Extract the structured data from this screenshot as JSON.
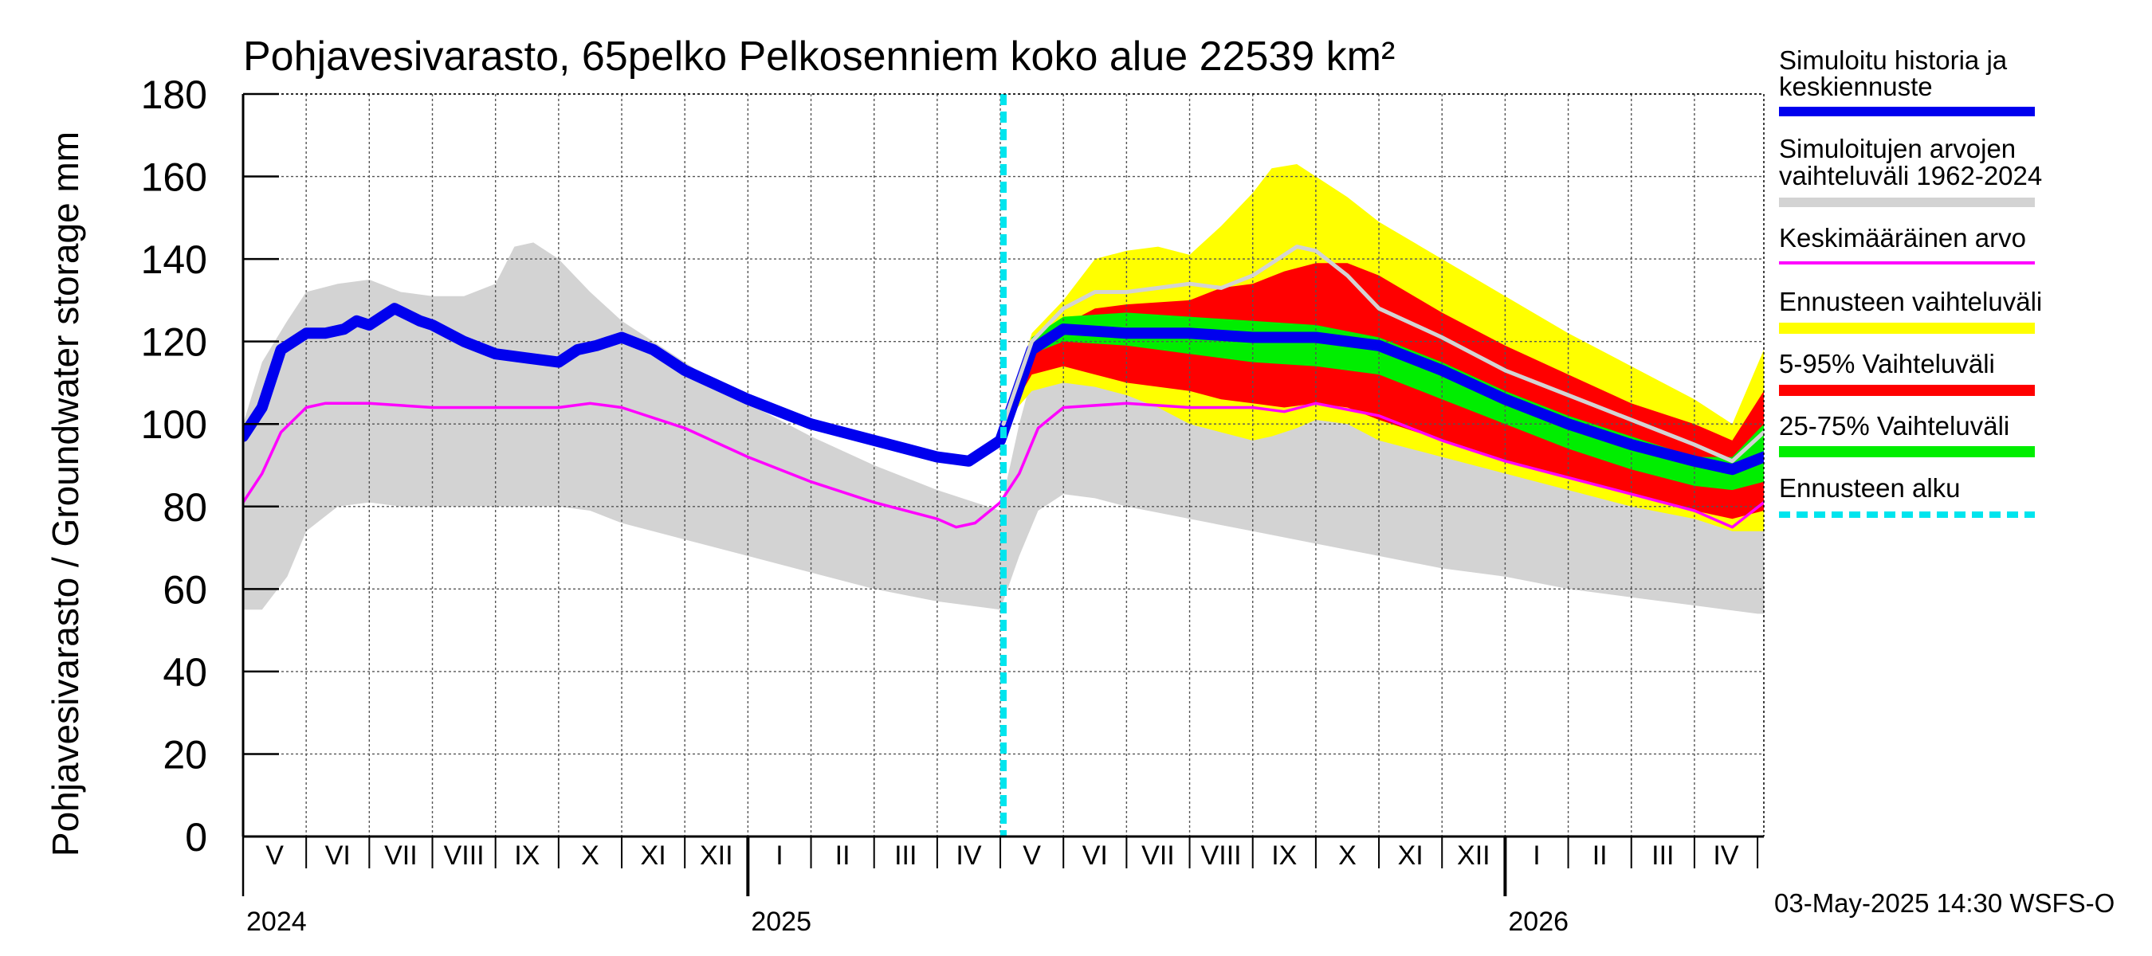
{
  "chart_data": {
    "type": "area",
    "title": "Pohjavesivarasto, 65pelko Pelkosenniem koko alue 22539 km²",
    "ylabel": "Pohjavesivarasto / Groundwater storage   mm",
    "ylim": [
      0,
      180
    ],
    "yticks": [
      0,
      20,
      40,
      60,
      80,
      100,
      120,
      140,
      160,
      180
    ],
    "x_unit": "months since 2024-05-01",
    "xlim": [
      0,
      24.1
    ],
    "forecast_start": 12.05,
    "months": [
      {
        "label": "V",
        "x": 0.5
      },
      {
        "label": "VI",
        "x": 1.5
      },
      {
        "label": "VII",
        "x": 2.5
      },
      {
        "label": "VIII",
        "x": 3.5
      },
      {
        "label": "IX",
        "x": 4.5
      },
      {
        "label": "X",
        "x": 5.5
      },
      {
        "label": "XI",
        "x": 6.5
      },
      {
        "label": "XII",
        "x": 7.5
      },
      {
        "label": "I",
        "x": 8.5
      },
      {
        "label": "II",
        "x": 9.5
      },
      {
        "label": "III",
        "x": 10.5
      },
      {
        "label": "IV",
        "x": 11.5
      },
      {
        "label": "V",
        "x": 12.5
      },
      {
        "label": "VI",
        "x": 13.5
      },
      {
        "label": "VII",
        "x": 14.5
      },
      {
        "label": "VIII",
        "x": 15.5
      },
      {
        "label": "IX",
        "x": 16.5
      },
      {
        "label": "X",
        "x": 17.5
      },
      {
        "label": "XI",
        "x": 18.5
      },
      {
        "label": "XII",
        "x": 19.5
      },
      {
        "label": "I",
        "x": 20.5
      },
      {
        "label": "II",
        "x": 21.5
      },
      {
        "label": "III",
        "x": 22.5
      },
      {
        "label": "IV",
        "x": 23.5
      }
    ],
    "years": [
      {
        "label": "2024",
        "x": 0
      },
      {
        "label": "2025",
        "x": 8
      },
      {
        "label": "2026",
        "x": 20
      }
    ],
    "series": [
      {
        "name": "Simuloitujen arvojen vaihteluväli 1962-2024",
        "role": "range",
        "color": "#d3d3d3",
        "x": [
          0,
          0.3,
          0.7,
          1,
          1.5,
          2,
          2.5,
          3,
          3.5,
          4,
          4.3,
          4.6,
          5,
          5.5,
          6,
          7,
          8,
          9,
          10,
          11,
          12,
          12.3,
          12.6,
          13,
          13.5,
          14,
          15,
          16,
          17,
          18,
          19,
          20,
          21,
          22,
          23,
          24,
          24.1
        ],
        "upper": [
          100,
          115,
          125,
          132,
          134,
          135,
          132,
          131,
          131,
          134,
          143,
          144,
          140,
          132,
          125,
          115,
          105,
          97,
          90,
          84,
          79,
          100,
          117,
          124,
          131,
          134,
          133,
          131,
          125,
          117,
          110,
          104,
          98,
          93,
          88,
          84,
          83
        ],
        "lower": [
          55,
          55,
          63,
          74,
          80,
          81,
          80,
          80,
          80,
          80,
          80,
          80,
          80,
          79,
          76,
          72,
          68,
          64,
          60,
          57,
          55,
          68,
          79,
          83,
          82,
          80,
          77,
          74,
          71,
          68,
          65,
          63,
          60,
          58,
          56,
          54,
          54
        ]
      },
      {
        "name": "Ennusteen vaihteluväli",
        "role": "band",
        "color": "#ffff00",
        "x": [
          12.05,
          12.5,
          13,
          13.5,
          14,
          14.5,
          15,
          15.5,
          16,
          16.3,
          16.7,
          17,
          17.5,
          18,
          19,
          20,
          21,
          22,
          23,
          23.6,
          24.1
        ],
        "upper": [
          100,
          122,
          130,
          140,
          142,
          143,
          141,
          148,
          156,
          162,
          163,
          160,
          155,
          149,
          140,
          131,
          122,
          114,
          106,
          100,
          118
        ],
        "lower": [
          100,
          108,
          110,
          109,
          107,
          104,
          100,
          98,
          96,
          97,
          99,
          101,
          100,
          96,
          92,
          88,
          84,
          80,
          77,
          74,
          74
        ]
      },
      {
        "name": "5-95% Vaihteluväli",
        "role": "band",
        "color": "#ff0000",
        "x": [
          12.05,
          12.5,
          13,
          13.5,
          14,
          15,
          15.5,
          16,
          16.5,
          17,
          17.5,
          18,
          19,
          20,
          21,
          22,
          23,
          23.6,
          24.1
        ],
        "upper": [
          100,
          118,
          124,
          128,
          129,
          130,
          133,
          134,
          137,
          139,
          139,
          136,
          127,
          119,
          112,
          105,
          100,
          96,
          108
        ],
        "lower": [
          100,
          112,
          114,
          112,
          110,
          108,
          106,
          105,
          104,
          105,
          104,
          101,
          96,
          91,
          87,
          83,
          79,
          77,
          79
        ]
      },
      {
        "name": "25-75% Vaihteluväli",
        "role": "band",
        "color": "#00ee00",
        "x": [
          12.05,
          12.5,
          13,
          14,
          15,
          16,
          17,
          18,
          19,
          20,
          21,
          22,
          23,
          23.6,
          24.1
        ],
        "upper": [
          100,
          121,
          126,
          127,
          126,
          125,
          124,
          121,
          115,
          108,
          102,
          97,
          92,
          92,
          100
        ],
        "lower": [
          100,
          117,
          120,
          119,
          117,
          115,
          114,
          112,
          106,
          100,
          94,
          89,
          85,
          84,
          86
        ]
      },
      {
        "name": "Keskimääräinen arvo",
        "role": "line",
        "color": "#ff00ff",
        "x": [
          0,
          0.3,
          0.6,
          1,
          1.3,
          2,
          3,
          4,
          5,
          5.5,
          6,
          7,
          8,
          9,
          10,
          11,
          11.3,
          11.6,
          12,
          12.3,
          12.6,
          13,
          14,
          15,
          16,
          16.5,
          17,
          18,
          19,
          20,
          21,
          22,
          23,
          23.6,
          24.1
        ],
        "y": [
          81,
          88,
          98,
          104,
          105,
          105,
          104,
          104,
          104,
          105,
          104,
          99,
          92,
          86,
          81,
          77,
          75,
          76,
          81,
          88,
          99,
          104,
          105,
          104,
          104,
          103,
          105,
          102,
          96,
          91,
          87,
          83,
          79,
          75,
          81
        ]
      },
      {
        "name": "Simuloitu historia ja keskiennuste",
        "role": "line",
        "color": "#0000ee",
        "x": [
          0,
          0.3,
          0.6,
          1,
          1.3,
          1.6,
          1.8,
          2,
          2.4,
          2.8,
          3,
          3.5,
          4,
          4.5,
          5,
          5.3,
          5.6,
          6,
          6.5,
          7,
          8,
          9,
          10,
          11,
          11.5,
          12,
          12.5,
          13,
          14,
          15,
          16,
          17,
          18,
          19,
          20,
          21,
          22,
          23,
          23.6,
          24.1
        ],
        "y": [
          97,
          104,
          118,
          122,
          122,
          123,
          125,
          124,
          128,
          125,
          124,
          120,
          117,
          116,
          115,
          118,
          119,
          121,
          118,
          113,
          106,
          100,
          96,
          92,
          91,
          96,
          118,
          123,
          122,
          122,
          121,
          121,
          119,
          113,
          106,
          100,
          95,
          91,
          89,
          92
        ]
      },
      {
        "name": "Simuloitu median-viiva",
        "role": "aux-line",
        "color": "#d3d3d3",
        "x": [
          12.05,
          12.5,
          13,
          13.5,
          14,
          14.5,
          15,
          15.5,
          16,
          16.3,
          16.7,
          17,
          17.5,
          18,
          19,
          20,
          21,
          22,
          23,
          23.6,
          24.1
        ],
        "y": [
          100,
          120,
          128,
          132,
          132,
          133,
          134,
          133,
          136,
          139,
          143,
          142,
          136,
          128,
          121,
          113,
          107,
          101,
          95,
          91,
          98
        ]
      }
    ]
  },
  "legend": [
    {
      "label": "Simuloitu historia ja keskiennuste",
      "color": "#0000ee",
      "style": "line"
    },
    {
      "label": "Simuloitujen arvojen vaihteluväli 1962-2024",
      "color": "#d3d3d3",
      "style": "line"
    },
    {
      "label": "Keskimääräinen arvo",
      "color": "#ff00ff",
      "style": "thin"
    },
    {
      "label": "Ennusteen vaihteluväli",
      "color": "#ffff00",
      "style": "line"
    },
    {
      "label": "5-95% Vaihteluväli",
      "color": "#ff0000",
      "style": "line"
    },
    {
      "label": "25-75% Vaihteluväli",
      "color": "#00ee00",
      "style": "line"
    },
    {
      "label": "Ennusteen alku",
      "color": "#00e5ee",
      "style": "dashed"
    }
  ],
  "legend_lines": {
    "l0a": "Simuloitu historia ja",
    "l0b": "keskiennuste",
    "l1a": "Simuloitujen arvojen",
    "l1b": "vaihteluväli 1962-2024",
    "l2": "Keskimääräinen arvo",
    "l3": "Ennusteen vaihteluväli",
    "l4": "5-95% Vaihteluväli",
    "l5": "25-75% Vaihteluväli",
    "l6": "Ennusteen alku"
  },
  "footer": "03-May-2025 14:30 WSFS-O"
}
